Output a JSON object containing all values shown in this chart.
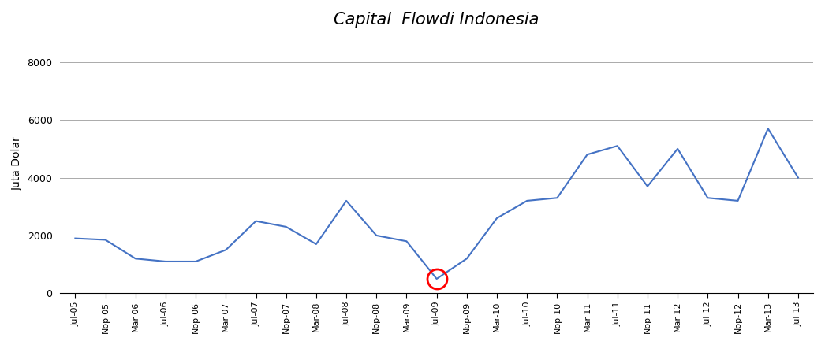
{
  "title": "Capital  Flowdi Indonesia",
  "ylabel": "Juta Dolar",
  "line_color": "#4472C4",
  "background_color": "#ffffff",
  "grid_color": "#aaaaaa",
  "ylim": [
    0,
    9000
  ],
  "yticks": [
    0,
    2000,
    4000,
    6000,
    8000
  ],
  "x_labels": [
    "Jul-05",
    "Nop-05",
    "Mar-06",
    "Jul-06",
    "Nop-06",
    "Mar-07",
    "Jul-07",
    "Nop-07",
    "Mar-08",
    "Jul-08",
    "Nop-08",
    "Mar-09",
    "Jul-09",
    "Nop-09",
    "Mar-10",
    "Jul-10",
    "Nop-10",
    "Mar-11",
    "Jul-11",
    "Nop-11",
    "Mar-12",
    "Jul-12",
    "Nop-12",
    "Mar-13",
    "Jul-13"
  ],
  "values": [
    1900,
    1850,
    1200,
    1100,
    1100,
    1500,
    2500,
    2300,
    1700,
    3200,
    2000,
    1800,
    500,
    1200,
    2600,
    3200,
    3300,
    4800,
    5100,
    3700,
    5000,
    3300,
    3200,
    5700,
    4000
  ],
  "circle_index": 12,
  "circle_color": "red",
  "title_fontsize": 15,
  "label_fontsize": 10,
  "tick_fontsize": 9
}
